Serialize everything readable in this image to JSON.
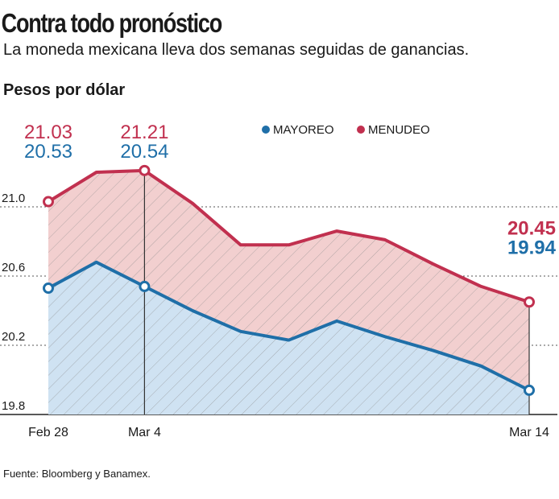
{
  "title": "Contra todo pronóstico",
  "subtitle": "La moneda mexicana lleva dos semanas seguidas de ganancias.",
  "source": "Fuente: Bloomberg y Banamex.",
  "chart_data": {
    "type": "area",
    "y_label": "Pesos por dólar",
    "categories": [
      "Feb 28",
      null,
      "Mar 4",
      null,
      null,
      null,
      null,
      null,
      null,
      null,
      "Mar 14"
    ],
    "series": [
      {
        "name": "MAYOREO",
        "color": "#1f6fa8",
        "fill": "#cfe2f2",
        "values": [
          20.53,
          20.68,
          20.54,
          20.4,
          20.28,
          20.23,
          20.34,
          20.25,
          20.17,
          20.08,
          19.94
        ]
      },
      {
        "name": "MENUDEO",
        "color": "#c1304f",
        "fill": "#f2cfcf",
        "values": [
          21.03,
          21.2,
          21.21,
          21.02,
          20.78,
          20.78,
          20.86,
          20.81,
          20.67,
          20.54,
          20.45
        ]
      }
    ],
    "ylim": [
      19.8,
      21.4
    ],
    "yticks": [
      19.8,
      20.2,
      20.6,
      {
        "value": 21,
        "label": "21.0"
      }
    ],
    "grid": true
  }
}
